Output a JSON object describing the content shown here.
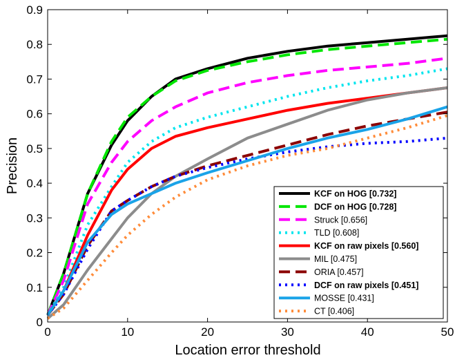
{
  "chart_data": {
    "type": "line",
    "title": "",
    "xlabel": "Location error threshold",
    "ylabel": "Precision",
    "xlim": [
      0,
      50
    ],
    "ylim": [
      0,
      0.9
    ],
    "x_ticks": [
      "0",
      "10",
      "20",
      "30",
      "40",
      "50"
    ],
    "y_ticks": [
      "0",
      "0.1",
      "0.2",
      "0.3",
      "0.4",
      "0.5",
      "0.6",
      "0.7",
      "0.8",
      "0.9"
    ],
    "grid": false,
    "legend_position": "bottom-right",
    "x": [
      0,
      2,
      5,
      8,
      10,
      13,
      16,
      20,
      25,
      30,
      35,
      40,
      45,
      50
    ],
    "series": [
      {
        "name": "KCF on HOG [0.732]",
        "bold": true,
        "color": "#000000",
        "dash": "solid",
        "values": [
          0.02,
          0.14,
          0.37,
          0.51,
          0.58,
          0.65,
          0.7,
          0.73,
          0.76,
          0.78,
          0.795,
          0.805,
          0.815,
          0.825
        ]
      },
      {
        "name": "DCF on HOG [0.728]",
        "bold": true,
        "color": "#00e600",
        "dash": "dash",
        "values": [
          0.02,
          0.14,
          0.37,
          0.52,
          0.59,
          0.65,
          0.695,
          0.725,
          0.75,
          0.77,
          0.785,
          0.795,
          0.805,
          0.815
        ]
      },
      {
        "name": "Struck [0.656]",
        "bold": false,
        "color": "#ff00ff",
        "dash": "dash",
        "values": [
          0.02,
          0.12,
          0.34,
          0.46,
          0.52,
          0.58,
          0.62,
          0.66,
          0.69,
          0.71,
          0.725,
          0.735,
          0.745,
          0.76
        ]
      },
      {
        "name": "TLD [0.608]",
        "bold": false,
        "color": "#00e5ee",
        "dash": "dot",
        "values": [
          0.02,
          0.1,
          0.28,
          0.39,
          0.46,
          0.52,
          0.56,
          0.59,
          0.62,
          0.65,
          0.675,
          0.695,
          0.71,
          0.73
        ]
      },
      {
        "name": "KCF on raw pixels [0.560]",
        "bold": true,
        "color": "#ff0000",
        "dash": "solid",
        "values": [
          0.02,
          0.09,
          0.25,
          0.38,
          0.44,
          0.5,
          0.535,
          0.56,
          0.585,
          0.61,
          0.63,
          0.645,
          0.66,
          0.675
        ]
      },
      {
        "name": "MIL [0.475]",
        "bold": false,
        "color": "#8c8c8c",
        "dash": "solid",
        "values": [
          0.01,
          0.05,
          0.15,
          0.24,
          0.3,
          0.37,
          0.42,
          0.47,
          0.53,
          0.57,
          0.61,
          0.64,
          0.66,
          0.675
        ]
      },
      {
        "name": "ORIA [0.457]",
        "bold": false,
        "color": "#8b0000",
        "dash": "dash",
        "values": [
          0.02,
          0.08,
          0.22,
          0.32,
          0.35,
          0.39,
          0.42,
          0.45,
          0.48,
          0.51,
          0.54,
          0.565,
          0.585,
          0.605
        ]
      },
      {
        "name": "DCF on raw pixels [0.451]",
        "bold": true,
        "color": "#0000ff",
        "dash": "dot",
        "values": [
          0.02,
          0.08,
          0.21,
          0.32,
          0.35,
          0.39,
          0.42,
          0.445,
          0.47,
          0.49,
          0.505,
          0.515,
          0.52,
          0.53
        ]
      },
      {
        "name": "MOSSE [0.431]",
        "bold": false,
        "color": "#1aa3e8",
        "dash": "solid",
        "values": [
          0.02,
          0.09,
          0.23,
          0.31,
          0.34,
          0.37,
          0.4,
          0.43,
          0.465,
          0.5,
          0.53,
          0.555,
          0.585,
          0.62
        ]
      },
      {
        "name": "CT [0.406]",
        "bold": false,
        "color": "#ff8c3a",
        "dash": "dot",
        "values": [
          0.01,
          0.04,
          0.12,
          0.2,
          0.25,
          0.31,
          0.36,
          0.41,
          0.45,
          0.48,
          0.5,
          0.53,
          0.56,
          0.595
        ]
      }
    ]
  }
}
